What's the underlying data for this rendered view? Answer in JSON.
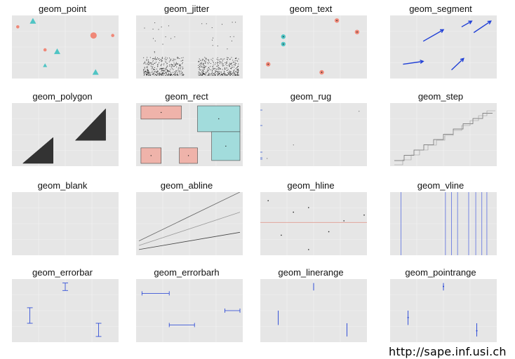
{
  "panels": [
    {
      "id": "geom_point",
      "title": "geom_point"
    },
    {
      "id": "geom_jitter",
      "title": "geom_jitter"
    },
    {
      "id": "geom_text",
      "title": "geom_text"
    },
    {
      "id": "geom_segment",
      "title": "geom_segment"
    },
    {
      "id": "geom_polygon",
      "title": "geom_polygon"
    },
    {
      "id": "geom_rect",
      "title": "geom_rect"
    },
    {
      "id": "geom_rug",
      "title": "geom_rug"
    },
    {
      "id": "geom_step",
      "title": "geom_step"
    },
    {
      "id": "geom_blank",
      "title": "geom_blank"
    },
    {
      "id": "geom_abline",
      "title": "geom_abline"
    },
    {
      "id": "geom_hline",
      "title": "geom_hline"
    },
    {
      "id": "geom_vline",
      "title": "geom_vline"
    },
    {
      "id": "geom_errorbar",
      "title": "geom_errorbar"
    },
    {
      "id": "geom_errorbarh",
      "title": "geom_errorbarh"
    },
    {
      "id": "geom_linerange",
      "title": "geom_linerange"
    },
    {
      "id": "geom_pointrange",
      "title": "geom_pointrange"
    }
  ],
  "footer": {
    "url": "http://sape.inf.usi.ch"
  },
  "colors": {
    "panel_bg": "#e6e6e6",
    "blue": "#1f3fd6",
    "salmon": "#f08878",
    "teal": "#4fc4c4",
    "dark": "#333333"
  },
  "chart_data": [
    {
      "type": "scatter",
      "panel": "geom_point",
      "points": [
        {
          "x": 0.03,
          "y": 0.85,
          "series": "a"
        },
        {
          "x": 0.18,
          "y": 0.95,
          "series": "b"
        },
        {
          "x": 0.3,
          "y": 0.45,
          "series": "a"
        },
        {
          "x": 0.42,
          "y": 0.42,
          "series": "b"
        },
        {
          "x": 0.3,
          "y": 0.18,
          "series": "b"
        },
        {
          "x": 0.78,
          "y": 0.7,
          "series": "a"
        },
        {
          "x": 0.97,
          "y": 0.7,
          "series": "a"
        },
        {
          "x": 0.8,
          "y": 0.06,
          "series": "b"
        }
      ]
    },
    {
      "type": "scatter",
      "panel": "geom_jitter",
      "groups": 2
    },
    {
      "type": "scatter",
      "panel": "geom_text",
      "points": [
        {
          "x": 0.05,
          "y": 0.2,
          "series": "a"
        },
        {
          "x": 0.2,
          "y": 0.68,
          "series": "b"
        },
        {
          "x": 0.2,
          "y": 0.55,
          "series": "b"
        },
        {
          "x": 0.58,
          "y": 0.06,
          "series": "a"
        },
        {
          "x": 0.73,
          "y": 0.96,
          "series": "a"
        },
        {
          "x": 0.93,
          "y": 0.76,
          "series": "a"
        }
      ]
    },
    {
      "type": "line",
      "panel": "geom_segment",
      "segments": [
        [
          0.1,
          0.2,
          0.3,
          0.25
        ],
        [
          0.3,
          0.6,
          0.5,
          0.8
        ],
        [
          0.58,
          0.1,
          0.7,
          0.3
        ],
        [
          0.68,
          0.85,
          0.78,
          0.95
        ],
        [
          0.8,
          0.75,
          0.97,
          0.95
        ]
      ]
    },
    {
      "type": "area",
      "panel": "geom_polygon",
      "polygons": [
        [
          [
            0.08,
            0.0
          ],
          [
            0.38,
            0.45
          ],
          [
            0.38,
            0.0
          ]
        ],
        [
          [
            0.6,
            0.4
          ],
          [
            0.9,
            0.95
          ],
          [
            0.9,
            0.4
          ]
        ]
      ]
    },
    {
      "type": "bar",
      "panel": "geom_rect",
      "rects": [
        {
          "x0": 0.02,
          "x1": 0.42,
          "y0": 0.77,
          "y1": 1.0,
          "series": "a"
        },
        {
          "x0": 0.02,
          "x1": 0.22,
          "y0": 0.0,
          "y1": 0.27,
          "series": "a"
        },
        {
          "x0": 0.4,
          "x1": 0.58,
          "y0": 0.0,
          "y1": 0.27,
          "series": "a"
        },
        {
          "x0": 0.58,
          "x1": 1.0,
          "y0": 0.55,
          "y1": 1.0,
          "series": "b"
        },
        {
          "x0": 0.72,
          "x1": 1.0,
          "y0": 0.05,
          "y1": 0.55,
          "series": "b"
        }
      ]
    },
    {
      "type": "scatter",
      "panel": "geom_rug"
    },
    {
      "type": "line",
      "panel": "geom_step"
    },
    {
      "type": "scatter",
      "panel": "geom_blank"
    },
    {
      "type": "line",
      "panel": "geom_abline",
      "lines": [
        [
          0.0,
          0.05,
          1.0,
          0.35
        ],
        [
          0.0,
          0.12,
          1.0,
          0.7
        ],
        [
          0.0,
          0.2,
          1.0,
          1.05
        ]
      ]
    },
    {
      "type": "scatter",
      "panel": "geom_hline",
      "hline": 0.52,
      "points": [
        [
          0.05,
          0.9
        ],
        [
          0.3,
          0.7
        ],
        [
          0.45,
          0.78
        ],
        [
          0.18,
          0.3
        ],
        [
          0.65,
          0.36
        ],
        [
          0.8,
          0.55
        ],
        [
          1.0,
          0.65
        ],
        [
          0.45,
          0.05
        ]
      ]
    },
    {
      "type": "line",
      "panel": "geom_vline",
      "vlines": [
        0.08,
        0.52,
        0.58,
        0.64,
        0.75,
        0.82,
        0.88,
        0.93
      ]
    },
    {
      "type": "scatter",
      "panel": "geom_errorbar",
      "bars": [
        {
          "x": 0.15,
          "lo": 0.28,
          "hi": 0.55
        },
        {
          "x": 0.5,
          "lo": 0.85,
          "hi": 0.98
        },
        {
          "x": 0.83,
          "lo": 0.05,
          "hi": 0.28
        }
      ]
    },
    {
      "type": "scatter",
      "panel": "geom_errorbarh",
      "bars": [
        {
          "y": 0.8,
          "lo": 0.03,
          "hi": 0.3
        },
        {
          "y": 0.25,
          "lo": 0.3,
          "hi": 0.55
        },
        {
          "y": 0.5,
          "lo": 0.85,
          "hi": 1.0
        }
      ]
    },
    {
      "type": "scatter",
      "panel": "geom_linerange",
      "bars": [
        {
          "x": 0.15,
          "lo": 0.25,
          "hi": 0.5
        },
        {
          "x": 0.5,
          "lo": 0.85,
          "hi": 0.98
        },
        {
          "x": 0.83,
          "lo": 0.05,
          "hi": 0.28
        }
      ]
    },
    {
      "type": "scatter",
      "panel": "geom_pointrange",
      "bars": [
        {
          "x": 0.15,
          "lo": 0.25,
          "hi": 0.5,
          "mid": 0.38
        },
        {
          "x": 0.5,
          "lo": 0.85,
          "hi": 0.98,
          "mid": 0.92
        },
        {
          "x": 0.83,
          "lo": 0.05,
          "hi": 0.28,
          "mid": 0.15
        }
      ]
    }
  ]
}
